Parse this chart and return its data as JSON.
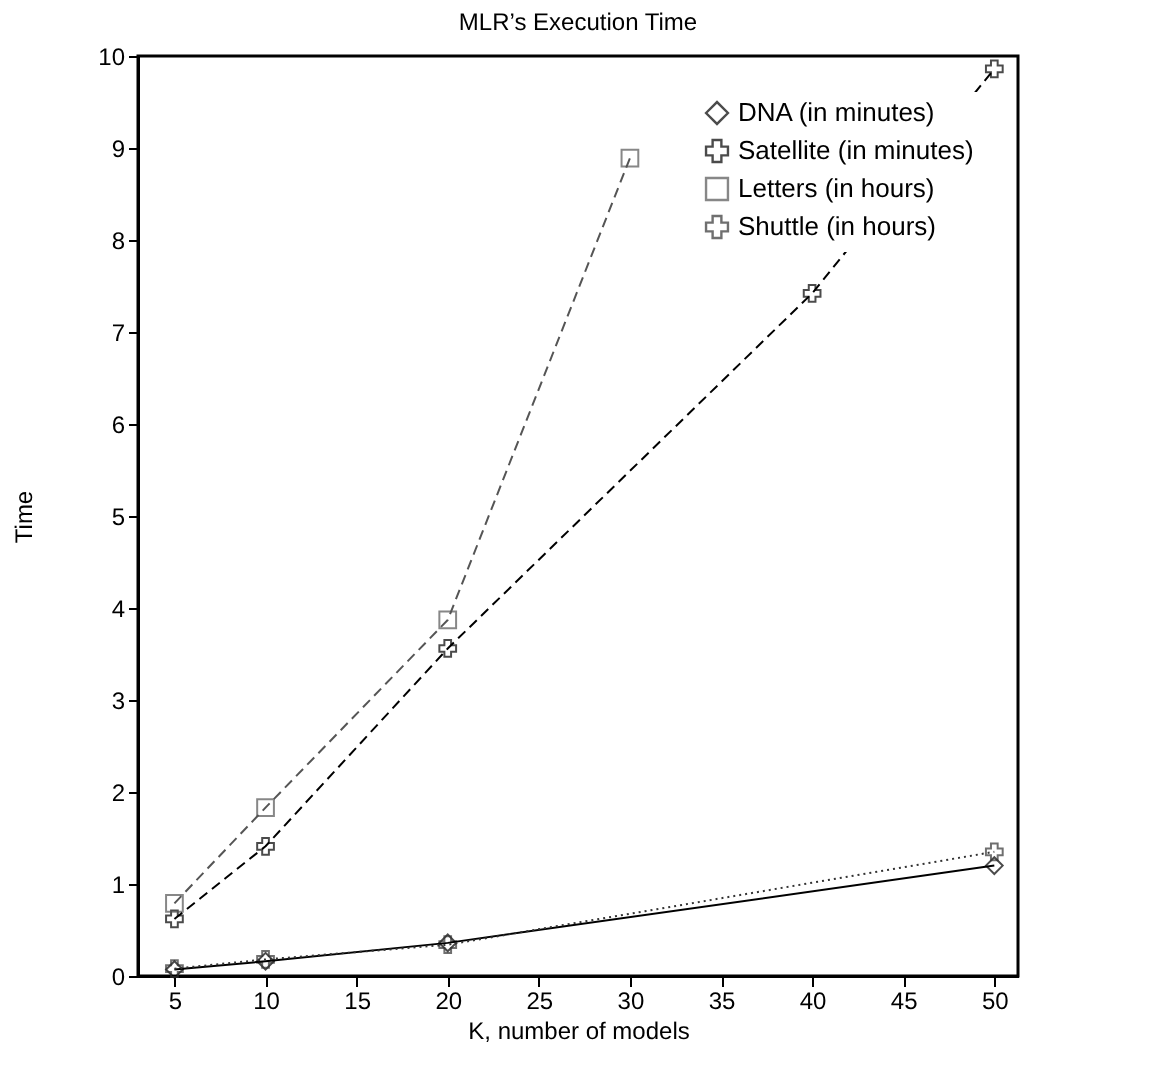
{
  "chart_data": {
    "type": "line",
    "title": "MLR’s Execution Time",
    "xlabel": "K, number of models",
    "ylabel": "Time",
    "xlim": [
      3,
      51.3
    ],
    "xticks": [
      5,
      10,
      15,
      20,
      25,
      30,
      35,
      40,
      45,
      50
    ],
    "ylim": [
      0,
      10
    ],
    "yticks": [
      0,
      1,
      2,
      3,
      4,
      5,
      6,
      7,
      8,
      9,
      10
    ],
    "grid": false,
    "legend": "top right",
    "series": [
      {
        "name": "DNA (in minutes)",
        "color": "#000000",
        "marker": "diamond",
        "line_style": "solid",
        "x": [
          5,
          10,
          20,
          50
        ],
        "values": [
          0.07,
          0.16,
          0.36,
          1.2
        ]
      },
      {
        "name": "Satellite (in minutes)",
        "color": "#000000",
        "marker": "cross",
        "line_style": "dashed",
        "x": [
          5,
          10,
          20,
          40,
          50
        ],
        "values": [
          0.62,
          1.41,
          3.56,
          7.42,
          9.86
        ]
      },
      {
        "name": "Letters (in hours)",
        "color": "#555555",
        "marker": "square",
        "line_style": "dashed",
        "x": [
          5,
          10,
          20,
          30
        ],
        "values": [
          0.79,
          1.83,
          3.87,
          8.89
        ]
      },
      {
        "name": "Shuttle (in hours)",
        "color": "#333333",
        "marker": "cross",
        "line_style": "dotted",
        "x": [
          5,
          10,
          20,
          50
        ],
        "values": [
          0.08,
          0.18,
          0.34,
          1.35
        ]
      }
    ]
  }
}
